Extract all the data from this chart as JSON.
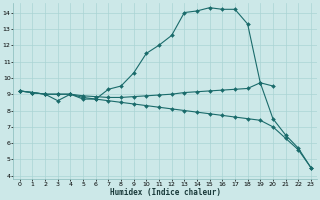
{
  "xlabel": "Humidex (Indice chaleur)",
  "bg_color": "#cce8e8",
  "line_color": "#1a6b6b",
  "grid_color": "#aad4d4",
  "xlim": [
    -0.5,
    23.5
  ],
  "ylim": [
    3.8,
    14.6
  ],
  "yticks": [
    4,
    5,
    6,
    7,
    8,
    9,
    10,
    11,
    12,
    13,
    14
  ],
  "xticks": [
    0,
    1,
    2,
    3,
    4,
    5,
    6,
    7,
    8,
    9,
    10,
    11,
    12,
    13,
    14,
    15,
    16,
    17,
    18,
    19,
    20,
    21,
    22,
    23
  ],
  "line1_x": [
    0,
    1,
    2,
    3,
    4,
    5,
    6,
    7,
    8,
    9,
    10,
    11,
    12,
    13,
    14,
    15,
    16,
    17,
    18,
    19,
    20
  ],
  "line1_y": [
    9.2,
    9.1,
    9.0,
    8.6,
    9.0,
    8.7,
    8.7,
    9.3,
    9.5,
    10.3,
    11.5,
    12.0,
    12.6,
    14.0,
    14.1,
    14.3,
    14.2,
    14.2,
    13.3,
    9.7,
    9.5
  ],
  "line2_x": [
    0,
    1,
    2,
    3,
    4,
    5,
    6,
    7,
    8,
    9,
    10,
    11,
    12,
    13,
    14,
    15,
    16,
    17,
    18,
    19,
    20,
    21,
    22,
    23
  ],
  "line2_y": [
    9.2,
    9.1,
    9.0,
    9.0,
    9.0,
    8.9,
    8.85,
    8.8,
    8.8,
    8.85,
    8.9,
    8.95,
    9.0,
    9.1,
    9.15,
    9.2,
    9.25,
    9.3,
    9.35,
    9.7,
    7.5,
    6.5,
    5.7,
    4.5
  ],
  "line3_x": [
    0,
    1,
    2,
    3,
    4,
    5,
    6,
    7,
    8,
    9,
    10,
    11,
    12,
    13,
    14,
    15,
    16,
    17,
    18,
    19,
    20,
    21,
    22,
    23
  ],
  "line3_y": [
    9.2,
    9.1,
    9.0,
    9.0,
    9.0,
    8.8,
    8.7,
    8.6,
    8.5,
    8.4,
    8.3,
    8.2,
    8.1,
    8.0,
    7.9,
    7.8,
    7.7,
    7.6,
    7.5,
    7.4,
    7.0,
    6.3,
    5.6,
    4.5
  ],
  "xlabel_fontsize": 5.5,
  "tick_fontsize": 4.5
}
